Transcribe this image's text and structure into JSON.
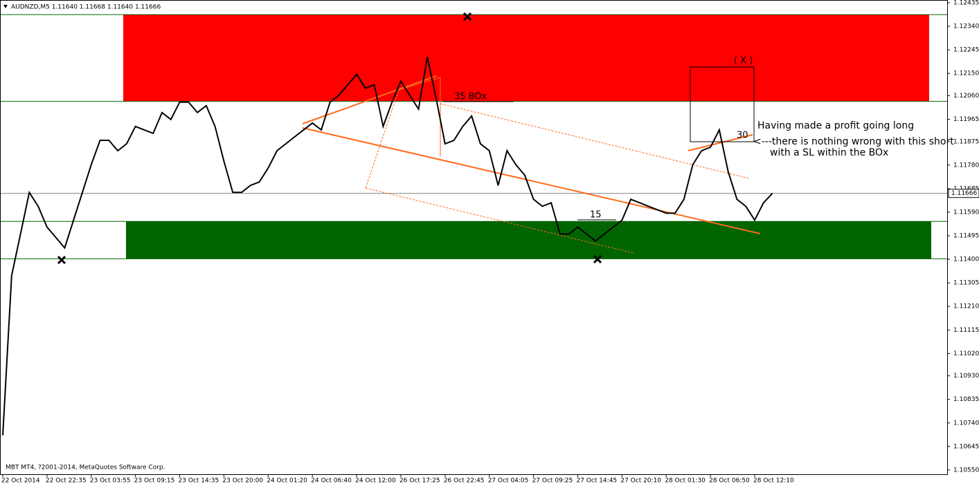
{
  "chart_data": {
    "type": "line",
    "title": "AUDNZD,M5  1.11640 1.11668 1.11640 1.11666",
    "footer": "MBT MT4, ?2001-2014, MetaQuotes Software Corp.",
    "categories": [
      "22 Oct 2014",
      null,
      null,
      null,
      null,
      "22 Oct 22:35",
      null,
      null,
      null,
      null,
      "23 Oct 03:55",
      null,
      null,
      null,
      null,
      "23 Oct 09:15",
      null,
      null,
      null,
      null,
      "23 Oct 14:35",
      null,
      null,
      null,
      null,
      "23 Oct 20:00",
      null,
      null,
      null,
      null,
      "24 Oct 01:20",
      null,
      null,
      null,
      null,
      "24 Oct 06:40",
      null,
      null,
      null,
      null,
      "24 Oct 12:00",
      null,
      null,
      null,
      null,
      "26 Oct 17:25",
      null,
      null,
      null,
      null,
      "26 Oct 22:45",
      null,
      null,
      null,
      null,
      "27 Oct 04:05",
      null,
      null,
      null,
      null,
      "27 Oct 09:25",
      null,
      null,
      null,
      null,
      "27 Oct 14:45",
      null,
      null,
      null,
      null,
      "27 Oct 20:10",
      null,
      null,
      null,
      null,
      "28 Oct 01:30",
      null,
      null,
      null,
      null,
      "28 Oct 06:50",
      null,
      null,
      null,
      null,
      "28 Oct 12:10",
      null,
      null
    ],
    "series": [
      {
        "name": "AUDNZD",
        "color": "#000000",
        "values": [
          1.1069,
          1.11334,
          1.11502,
          1.1167,
          1.11614,
          1.1153,
          1.11488,
          1.11446,
          1.11558,
          1.1167,
          1.11782,
          1.1188,
          1.1188,
          1.11838,
          1.11866,
          1.11936,
          1.11922,
          1.11908,
          1.11992,
          1.11964,
          1.12034,
          1.12034,
          1.11992,
          1.1202,
          1.11936,
          1.11796,
          1.1167,
          1.1167,
          1.11698,
          1.11712,
          1.11768,
          1.11838,
          1.11866,
          1.11894,
          1.11922,
          1.1195,
          1.11922,
          1.12034,
          1.12062,
          1.12104,
          1.12146,
          1.1209,
          1.12104,
          1.11936,
          1.12034,
          1.12118,
          1.12062,
          1.12006,
          1.12216,
          1.12048,
          1.11866,
          1.1188,
          1.11936,
          1.11978,
          1.11866,
          1.11838,
          1.11698,
          1.11838,
          1.11782,
          1.1174,
          1.11642,
          1.11614,
          1.11628,
          1.11502,
          1.11502,
          1.1153,
          1.11502,
          1.11474,
          1.11502,
          1.1153,
          1.11558,
          1.11642,
          1.11628,
          1.11614,
          1.116,
          1.11586,
          1.11586,
          1.11642,
          1.11782,
          1.11838,
          1.11852,
          1.11922,
          1.11754,
          1.11642,
          1.11614,
          1.11558,
          1.11628,
          1.11666
        ]
      }
    ],
    "last_price": 1.11666,
    "ylim": [
      1.10533,
      1.12446
    ],
    "yticks": [
      1.12435,
      {
        "value": 1.1234,
        "label": "1.12340"
      },
      1.12245,
      {
        "value": 1.1215,
        "label": "1.12150"
      },
      {
        "value": 1.1206,
        "label": "1.12060"
      },
      1.11965,
      1.11875,
      {
        "value": 1.1178,
        "label": "1.11780"
      },
      1.11685,
      {
        "value": 1.1159,
        "label": "1.11590"
      },
      1.11495,
      {
        "value": 1.114,
        "label": "1.11400"
      },
      1.11305,
      {
        "value": 1.1121,
        "label": "1.11210"
      },
      1.11115,
      {
        "value": 1.1102,
        "label": "1.11020"
      },
      {
        "value": 1.1093,
        "label": "1.10930"
      },
      1.10835,
      {
        "value": 1.1074,
        "label": "1.10740"
      },
      1.10645,
      {
        "value": 1.1055,
        "label": "1.10550"
      }
    ],
    "bands": [
      {
        "from": 1.12037,
        "to": 1.12387,
        "color": "#ff0000"
      },
      {
        "from": 1.11402,
        "to": 1.11553,
        "color": "#006400"
      }
    ],
    "annotations": [
      "35 BOx",
      "15",
      "30",
      "( X )",
      "Having made a profit going long",
      "<---there is nothing wrong with this short",
      "with a SL within the BOx"
    ]
  }
}
